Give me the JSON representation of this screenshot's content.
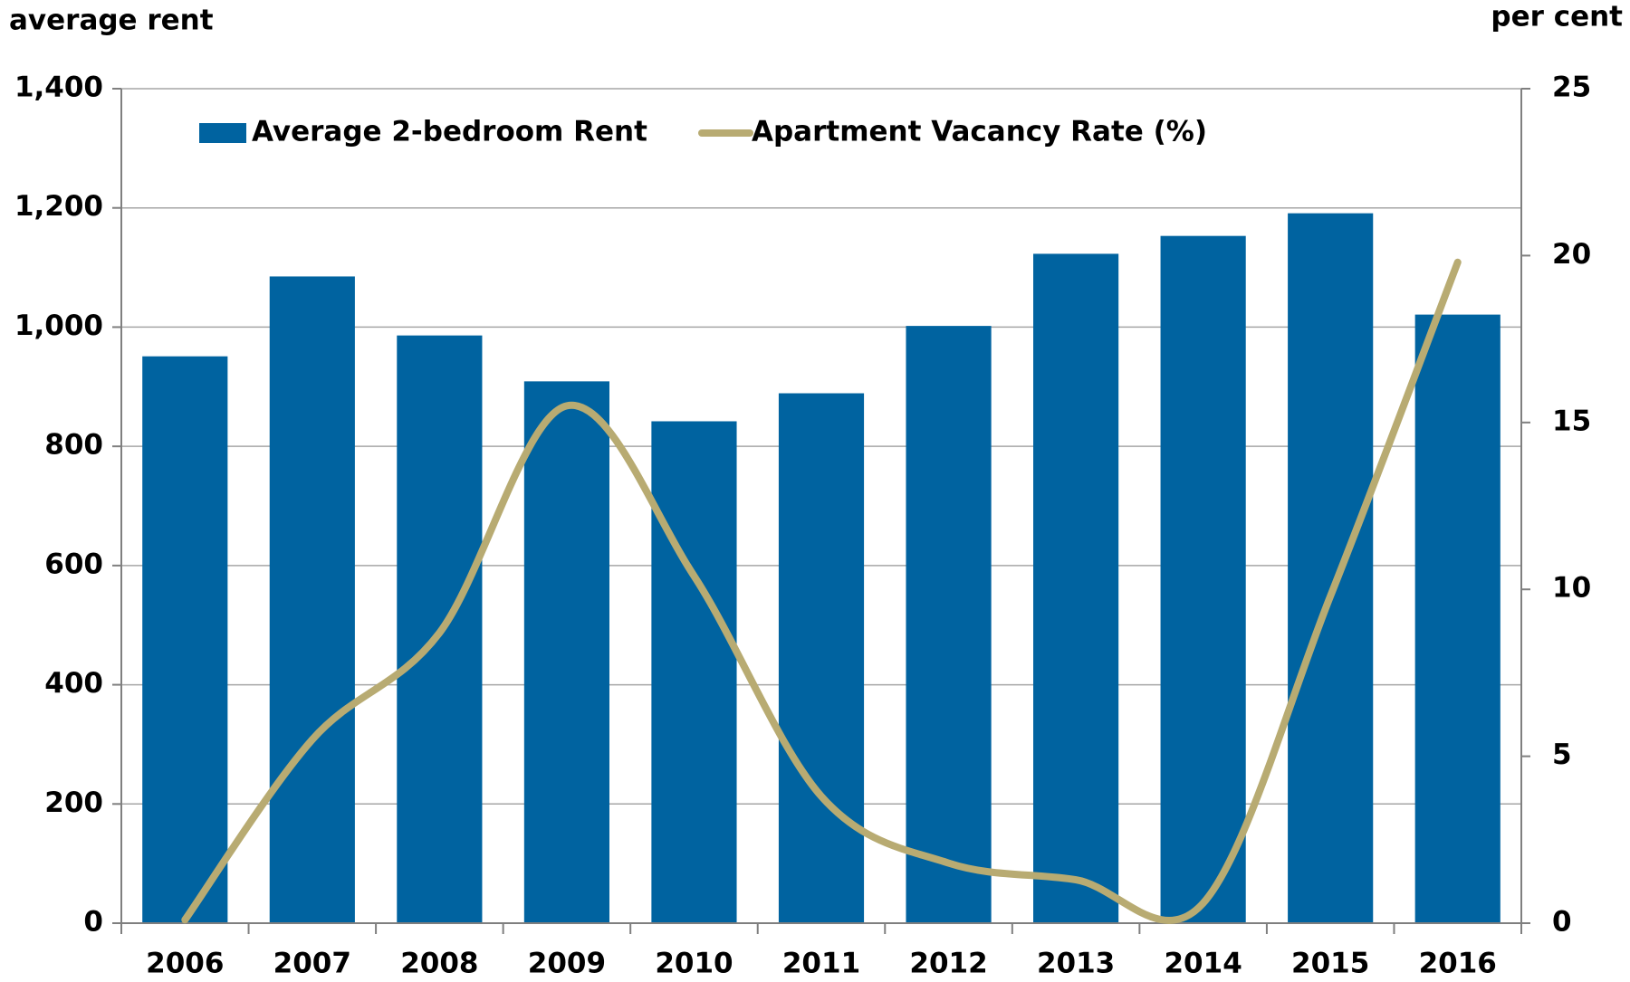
{
  "chart_data": {
    "type": "bar_line",
    "y_label": "average rent",
    "y2_label": "per cent",
    "categories": [
      "2006",
      "2007",
      "2008",
      "2009",
      "2010",
      "2011",
      "2012",
      "2013",
      "2014",
      "2015",
      "2016"
    ],
    "series": [
      {
        "name": "Average 2-bedroom Rent",
        "type": "bar",
        "color": "#0063a0",
        "values": [
          951,
          1085,
          986,
          909,
          842,
          889,
          1002,
          1123,
          1153,
          1191,
          1021
        ]
      },
      {
        "name": "Apartment Vacancy Rate (%)",
        "type": "line",
        "axis": "y2",
        "color": "#b8ab72",
        "values": [
          0.1,
          5.5,
          8.7,
          15.5,
          10.4,
          3.8,
          1.8,
          1.3,
          0.6,
          9.8,
          19.8
        ]
      }
    ],
    "ylim": [
      0,
      1400
    ],
    "yticks": [
      0,
      200,
      400,
      600,
      800,
      {
        "value": 1000,
        "label": "1,000"
      },
      {
        "value": 1200,
        "label": "1,200"
      },
      {
        "value": 1400,
        "label": "1,400"
      }
    ],
    "y2lim": [
      0,
      25
    ],
    "y2ticks": [
      0,
      5,
      10,
      15,
      20,
      25
    ],
    "grid": true,
    "legend": "top"
  }
}
